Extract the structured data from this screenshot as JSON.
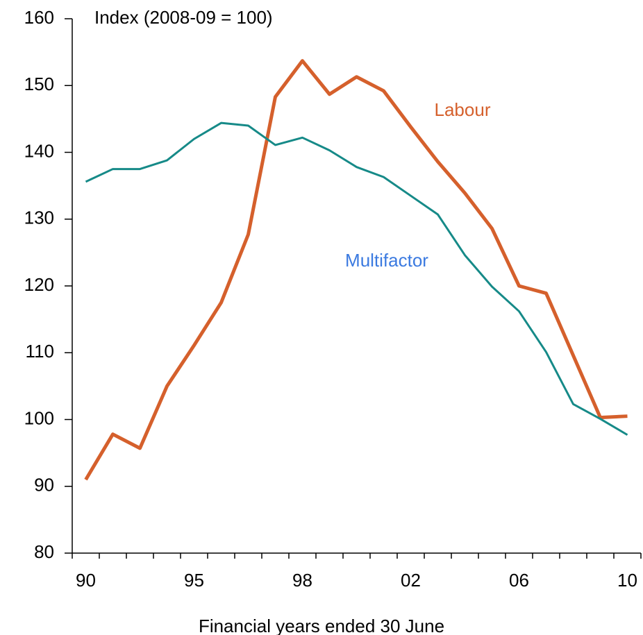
{
  "chart_data": {
    "type": "line",
    "title": "Index (2008-09 = 100)",
    "x_label": "Financial years ended 30 June",
    "categories": [
      "90",
      null,
      null,
      null,
      "95",
      null,
      null,
      null,
      "98",
      null,
      null,
      null,
      "02",
      null,
      null,
      null,
      "06",
      null,
      null,
      null,
      "10"
    ],
    "series": [
      {
        "name": "Labour",
        "color": "#d5602c",
        "label_color": "#d5602c",
        "line_width": 5,
        "values": [
          91.0,
          97.8,
          95.7,
          105.0,
          111.1,
          117.5,
          127.7,
          148.3,
          153.7,
          148.7,
          151.3,
          149.2,
          143.8,
          138.6,
          133.9,
          128.6,
          120.0,
          118.9,
          109.6,
          100.3,
          100.5
        ]
      },
      {
        "name": "Multifactor",
        "color": "#168a88",
        "label_color": "#3b7ae0",
        "line_width": 3,
        "values": [
          135.6,
          137.5,
          137.5,
          138.8,
          142.0,
          144.4,
          144.0,
          141.1,
          142.2,
          140.3,
          137.8,
          136.3,
          133.5,
          130.7,
          124.6,
          119.9,
          116.2,
          110.1,
          102.3,
          100.1,
          97.7
        ]
      }
    ],
    "ylim": [
      80,
      160
    ],
    "yticks": [
      80,
      90,
      100,
      110,
      120,
      130,
      140,
      150,
      160
    ],
    "grid": false
  }
}
